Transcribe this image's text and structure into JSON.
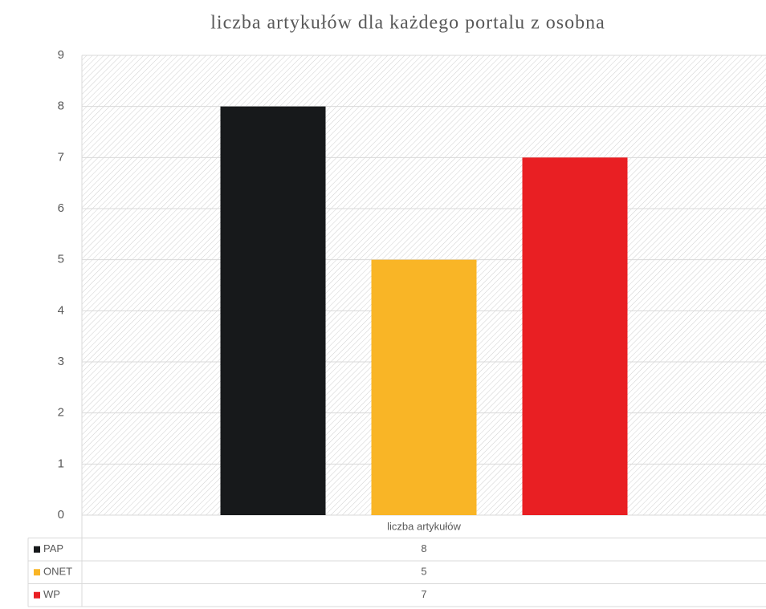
{
  "chart_data": {
    "type": "bar",
    "title": "liczba artykułów dla każdego portalu  z osobna",
    "categories": [
      "liczba artykułów"
    ],
    "series": [
      {
        "name": "PAP",
        "color": "#17191b",
        "values": [
          8
        ]
      },
      {
        "name": "ONET",
        "color": "#f9b526",
        "values": [
          5
        ]
      },
      {
        "name": "WP",
        "color": "#e91f23",
        "values": [
          7
        ]
      }
    ],
    "ylim": [
      0,
      9
    ],
    "yticks": [
      0,
      1,
      2,
      3,
      4,
      5,
      6,
      7,
      8,
      9
    ],
    "grid": true
  }
}
